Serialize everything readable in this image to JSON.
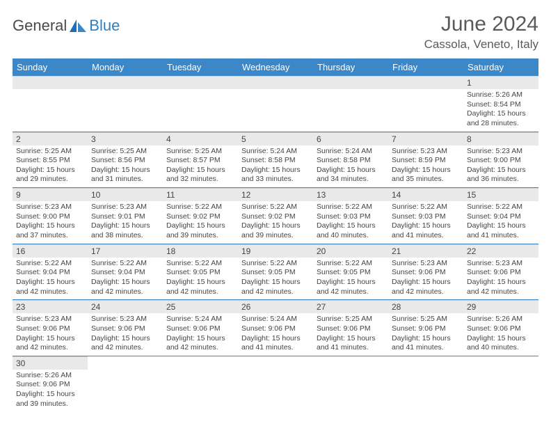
{
  "logo": {
    "text1": "General",
    "text2": "Blue"
  },
  "title": "June 2024",
  "location": "Cassola, Veneto, Italy",
  "weekdays": [
    "Sunday",
    "Monday",
    "Tuesday",
    "Wednesday",
    "Thursday",
    "Friday",
    "Saturday"
  ],
  "colors": {
    "header_bg": "#3b87c8",
    "header_text": "#ffffff",
    "daynum_bg": "#e9e9e9",
    "border": "#3b87c8",
    "text": "#444444",
    "logo_gray": "#4a4a4a",
    "logo_blue": "#2f7fc4"
  },
  "weeks": [
    [
      null,
      null,
      null,
      null,
      null,
      null,
      {
        "n": "1",
        "sr": "5:26 AM",
        "ss": "8:54 PM",
        "dh": "15",
        "dm": "28"
      }
    ],
    [
      {
        "n": "2",
        "sr": "5:25 AM",
        "ss": "8:55 PM",
        "dh": "15",
        "dm": "29"
      },
      {
        "n": "3",
        "sr": "5:25 AM",
        "ss": "8:56 PM",
        "dh": "15",
        "dm": "31"
      },
      {
        "n": "4",
        "sr": "5:25 AM",
        "ss": "8:57 PM",
        "dh": "15",
        "dm": "32"
      },
      {
        "n": "5",
        "sr": "5:24 AM",
        "ss": "8:58 PM",
        "dh": "15",
        "dm": "33"
      },
      {
        "n": "6",
        "sr": "5:24 AM",
        "ss": "8:58 PM",
        "dh": "15",
        "dm": "34"
      },
      {
        "n": "7",
        "sr": "5:23 AM",
        "ss": "8:59 PM",
        "dh": "15",
        "dm": "35"
      },
      {
        "n": "8",
        "sr": "5:23 AM",
        "ss": "9:00 PM",
        "dh": "15",
        "dm": "36"
      }
    ],
    [
      {
        "n": "9",
        "sr": "5:23 AM",
        "ss": "9:00 PM",
        "dh": "15",
        "dm": "37"
      },
      {
        "n": "10",
        "sr": "5:23 AM",
        "ss": "9:01 PM",
        "dh": "15",
        "dm": "38"
      },
      {
        "n": "11",
        "sr": "5:22 AM",
        "ss": "9:02 PM",
        "dh": "15",
        "dm": "39"
      },
      {
        "n": "12",
        "sr": "5:22 AM",
        "ss": "9:02 PM",
        "dh": "15",
        "dm": "39"
      },
      {
        "n": "13",
        "sr": "5:22 AM",
        "ss": "9:03 PM",
        "dh": "15",
        "dm": "40"
      },
      {
        "n": "14",
        "sr": "5:22 AM",
        "ss": "9:03 PM",
        "dh": "15",
        "dm": "41"
      },
      {
        "n": "15",
        "sr": "5:22 AM",
        "ss": "9:04 PM",
        "dh": "15",
        "dm": "41"
      }
    ],
    [
      {
        "n": "16",
        "sr": "5:22 AM",
        "ss": "9:04 PM",
        "dh": "15",
        "dm": "42"
      },
      {
        "n": "17",
        "sr": "5:22 AM",
        "ss": "9:04 PM",
        "dh": "15",
        "dm": "42"
      },
      {
        "n": "18",
        "sr": "5:22 AM",
        "ss": "9:05 PM",
        "dh": "15",
        "dm": "42"
      },
      {
        "n": "19",
        "sr": "5:22 AM",
        "ss": "9:05 PM",
        "dh": "15",
        "dm": "42"
      },
      {
        "n": "20",
        "sr": "5:22 AM",
        "ss": "9:05 PM",
        "dh": "15",
        "dm": "42"
      },
      {
        "n": "21",
        "sr": "5:23 AM",
        "ss": "9:06 PM",
        "dh": "15",
        "dm": "42"
      },
      {
        "n": "22",
        "sr": "5:23 AM",
        "ss": "9:06 PM",
        "dh": "15",
        "dm": "42"
      }
    ],
    [
      {
        "n": "23",
        "sr": "5:23 AM",
        "ss": "9:06 PM",
        "dh": "15",
        "dm": "42"
      },
      {
        "n": "24",
        "sr": "5:23 AM",
        "ss": "9:06 PM",
        "dh": "15",
        "dm": "42"
      },
      {
        "n": "25",
        "sr": "5:24 AM",
        "ss": "9:06 PM",
        "dh": "15",
        "dm": "42"
      },
      {
        "n": "26",
        "sr": "5:24 AM",
        "ss": "9:06 PM",
        "dh": "15",
        "dm": "41"
      },
      {
        "n": "27",
        "sr": "5:25 AM",
        "ss": "9:06 PM",
        "dh": "15",
        "dm": "41"
      },
      {
        "n": "28",
        "sr": "5:25 AM",
        "ss": "9:06 PM",
        "dh": "15",
        "dm": "41"
      },
      {
        "n": "29",
        "sr": "5:26 AM",
        "ss": "9:06 PM",
        "dh": "15",
        "dm": "40"
      }
    ],
    [
      {
        "n": "30",
        "sr": "5:26 AM",
        "ss": "9:06 PM",
        "dh": "15",
        "dm": "39"
      },
      null,
      null,
      null,
      null,
      null,
      null
    ]
  ],
  "labels": {
    "sunrise": "Sunrise:",
    "sunset": "Sunset:",
    "daylight": "Daylight:",
    "hours": "hours",
    "and": "and",
    "minutes": "minutes."
  }
}
